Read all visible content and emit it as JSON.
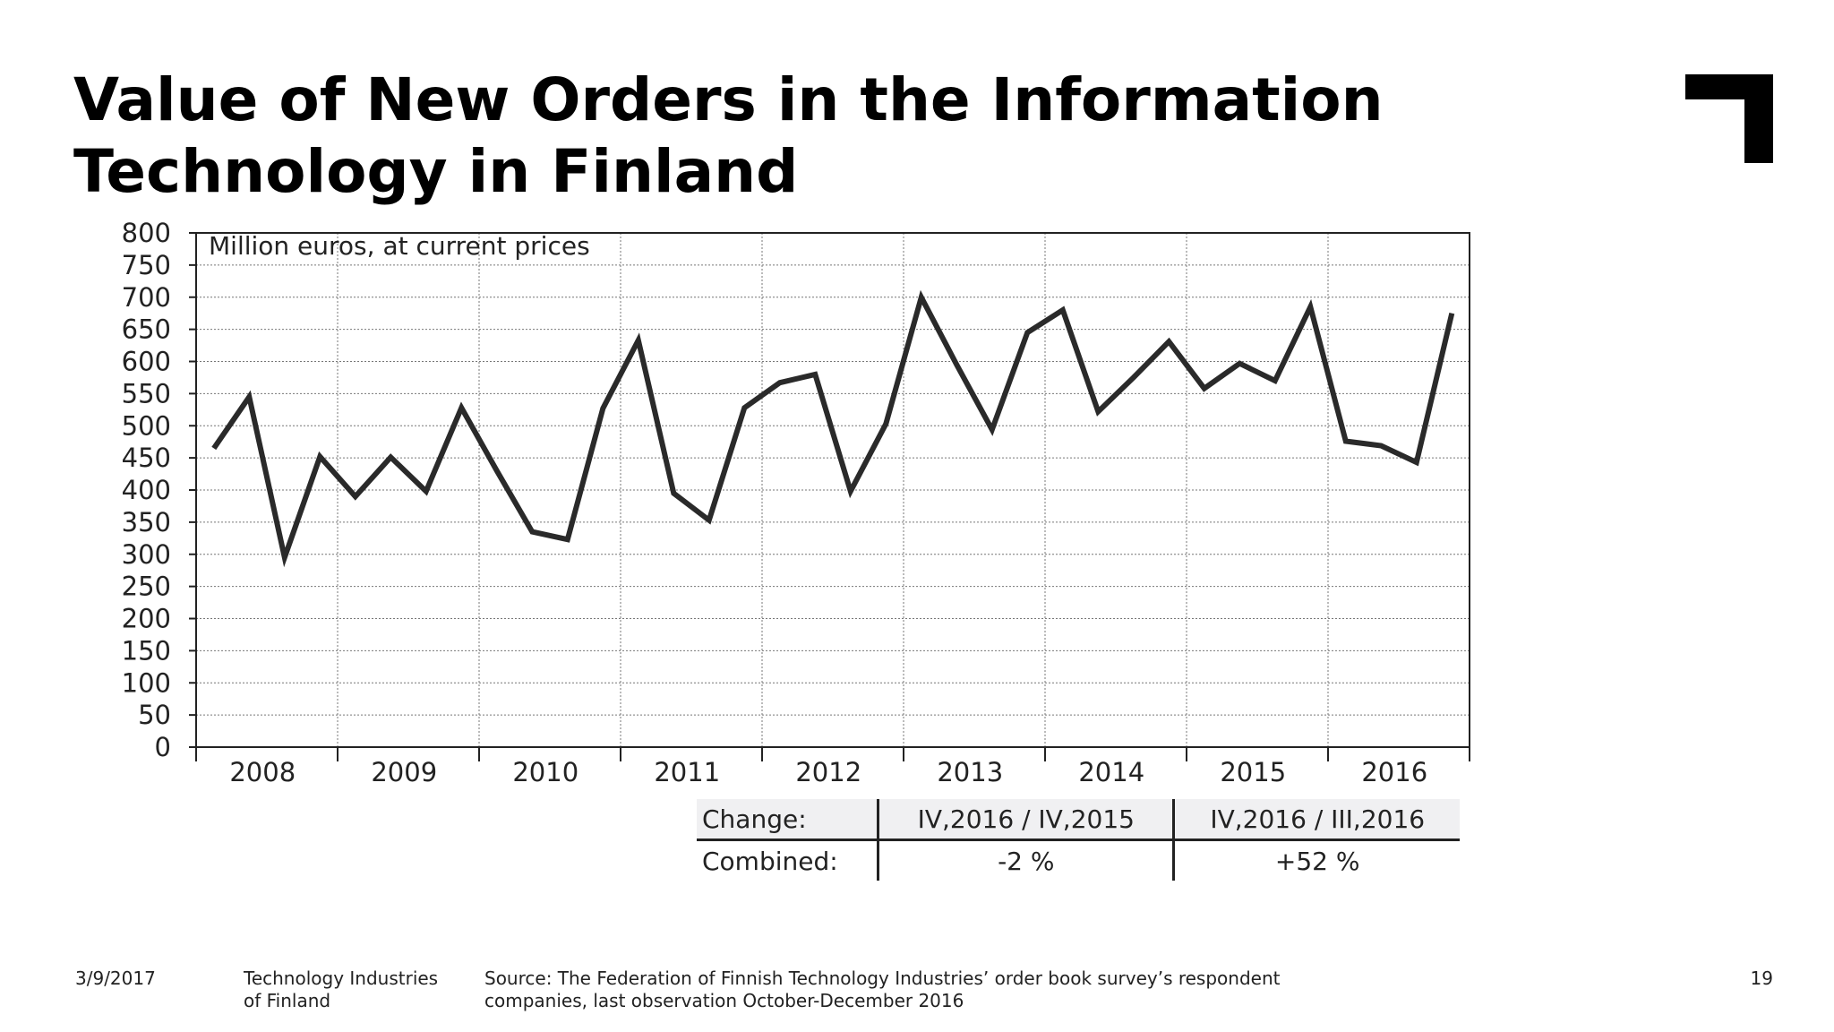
{
  "slide": {
    "title": "Value of New Orders in the Information Technology in Finland",
    "page_number": "19"
  },
  "footer": {
    "date": "3/9/2017",
    "organization": "Technology Industries of Finland",
    "source": "Source: The Federation of Finnish Technology Industries’ order book survey’s respondent companies, last observation October-December 2016"
  },
  "change_table": {
    "header": [
      "Change:",
      "IV,2016 / IV,2015",
      "IV,2016 / III,2016"
    ],
    "row": [
      "Combined:",
      "-2 %",
      "+52 %"
    ]
  },
  "chart_data": {
    "type": "line",
    "title": "",
    "annotation": "Million euros, at current prices",
    "xlabel": "",
    "ylabel": "",
    "ylim": [
      0,
      800
    ],
    "y_ticks": [
      0,
      50,
      100,
      150,
      200,
      250,
      300,
      350,
      400,
      450,
      500,
      550,
      600,
      650,
      700,
      750,
      800
    ],
    "year_labels": [
      "2008",
      "2009",
      "2010",
      "2011",
      "2012",
      "2013",
      "2014",
      "2015",
      "2016"
    ],
    "grid": true,
    "legend": "none",
    "line_color": "#2a2a2a",
    "series": [
      {
        "values": [
          465,
          545,
          295,
          452,
          390,
          451,
          398,
          528,
          430,
          335,
          323,
          527,
          633,
          395,
          353,
          528,
          567,
          580,
          398,
          503,
          700,
          595,
          494,
          645,
          680,
          522,
          575,
          631,
          558,
          597,
          570,
          685,
          476,
          469,
          443,
          675
        ]
      }
    ]
  }
}
